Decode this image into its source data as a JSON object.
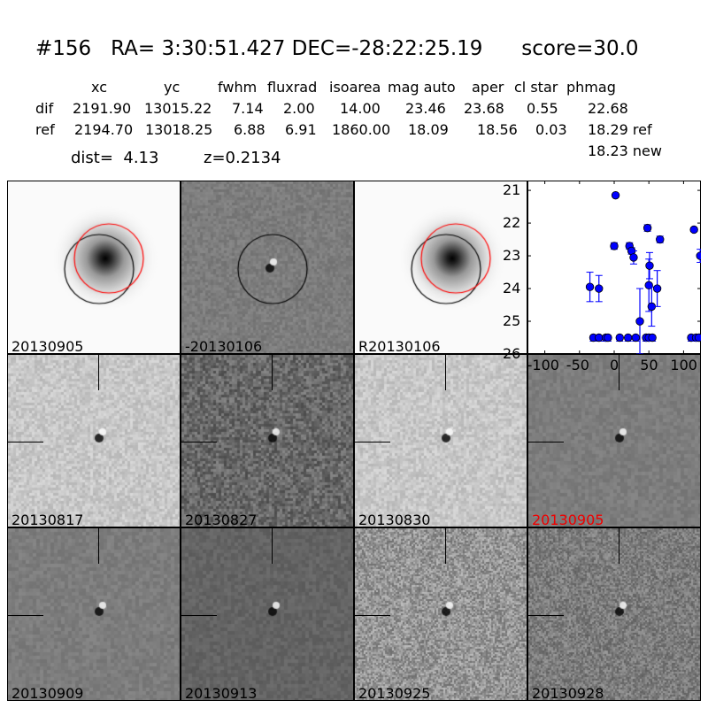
{
  "title": "#156   RA= 3:30:51.427 DEC=-28:22:25.19      score=30.0",
  "table": {
    "headers": [
      "xc",
      "yc",
      "fwhm",
      "fluxrad",
      "isoarea",
      "mag auto",
      "aper",
      "cl star",
      "phmag"
    ],
    "dif": {
      "label": "dif",
      "values": [
        "2191.90",
        "13015.22",
        "7.14",
        "2.00",
        "14.00",
        "23.46",
        "23.68",
        "0.55",
        "22.68"
      ]
    },
    "ref": {
      "label": "ref",
      "values": [
        "2194.70",
        "13018.25",
        "6.88",
        "6.91",
        "1860.00",
        "18.09",
        "18.56",
        "0.03",
        "18.29 ref"
      ]
    },
    "new_phmag": "18.23 new"
  },
  "dist": "dist=  4.13",
  "z": "z=0.2134",
  "stamps": [
    {
      "label": "20130905",
      "kind": "galaxy",
      "circles": [
        "black",
        "red"
      ]
    },
    {
      "label": "-20130106",
      "kind": "diff",
      "circles": [
        "black"
      ]
    },
    {
      "label": "R20130106",
      "kind": "galaxy",
      "circles": [
        "black",
        "red"
      ]
    },
    {
      "label": "20130817",
      "kind": "light"
    },
    {
      "label": "20130827",
      "kind": "dark"
    },
    {
      "label": "20130830",
      "kind": "light"
    },
    {
      "label": "20130905",
      "kind": "mid",
      "highlight": "#ee0000"
    },
    {
      "label": "20130909",
      "kind": "mid"
    },
    {
      "label": "20130913",
      "kind": "darkmid"
    },
    {
      "label": "20130925",
      "kind": "noisy"
    },
    {
      "label": "20130928",
      "kind": "noisy2"
    }
  ],
  "chart_data": {
    "type": "scatter",
    "xlim": [
      -125,
      125
    ],
    "ylim": [
      26,
      20.7
    ],
    "y_inverted": true,
    "xticks": [
      "-100",
      "-50",
      "0",
      "50",
      "100"
    ],
    "yticks": [
      "21",
      "22",
      "23",
      "24",
      "25",
      "26"
    ],
    "color": "#0000ff",
    "points": [
      {
        "x": -35,
        "y": 23.95,
        "err": 0.45
      },
      {
        "x": -22,
        "y": 24.0,
        "err": 0.4
      },
      {
        "x": 0,
        "y": 22.7,
        "err": 0.1
      },
      {
        "x": 2,
        "y": 21.15,
        "err": 0
      },
      {
        "x": 22,
        "y": 22.7,
        "err": 0.1
      },
      {
        "x": 25,
        "y": 22.85,
        "err": 0.1
      },
      {
        "x": 28,
        "y": 23.05,
        "err": 0.2
      },
      {
        "x": 37,
        "y": 25.0,
        "err": 1.0
      },
      {
        "x": 48,
        "y": 22.15,
        "err": 0.1
      },
      {
        "x": 50,
        "y": 23.9,
        "err": 0.8
      },
      {
        "x": 51,
        "y": 23.3,
        "err": 0.4
      },
      {
        "x": 54,
        "y": 24.55,
        "err": 0.6
      },
      {
        "x": 62,
        "y": 24.0,
        "err": 0.55
      },
      {
        "x": 66,
        "y": 22.5,
        "err": 0.1
      },
      {
        "x": 115,
        "y": 22.2,
        "err": 0.05
      },
      {
        "x": 124,
        "y": 23.0,
        "err": 0.2
      }
    ],
    "limits": [
      {
        "x": -30,
        "y": 25.5
      },
      {
        "x": -22,
        "y": 25.5
      },
      {
        "x": -12,
        "y": 25.5
      },
      {
        "x": -9,
        "y": 25.5
      },
      {
        "x": 8,
        "y": 25.5
      },
      {
        "x": 20,
        "y": 25.5
      },
      {
        "x": 31,
        "y": 25.5
      },
      {
        "x": 46,
        "y": 25.5
      },
      {
        "x": 50,
        "y": 25.5
      },
      {
        "x": 55,
        "y": 25.5
      },
      {
        "x": 111,
        "y": 25.5
      },
      {
        "x": 118,
        "y": 25.5
      },
      {
        "x": 122,
        "y": 25.5
      }
    ]
  }
}
